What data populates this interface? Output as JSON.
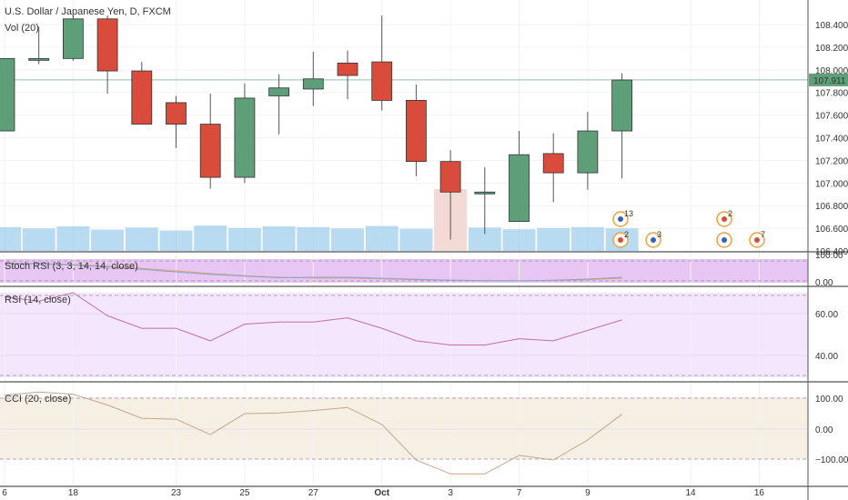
{
  "header": {
    "symbol_title": "U.S. Dollar / Japanese Yen, D, FXCM",
    "volume_label": "Vol (20)"
  },
  "colors": {
    "up": "#5e9e78",
    "down": "#d94b3a",
    "volume": "#7fbde6",
    "stoch_bg": "#e7c6f4",
    "rsi_bg": "#f3e6fd",
    "rsi_line": "#c070a8",
    "cci_bg": "#f5efe4",
    "cci_line": "#c8a68a",
    "price_line": "#8fc3a5",
    "price_badge": "#5e9e78"
  },
  "price_axis": {
    "ticks": [
      "108.400",
      "108.200",
      "108.000",
      "107.800",
      "107.600",
      "107.400",
      "107.200",
      "107.000",
      "106.800",
      "106.600",
      "106.400"
    ],
    "last_price": "107.911"
  },
  "time_axis": {
    "ticks": [
      "6",
      "18",
      "23",
      "25",
      "27",
      "Oct",
      "3",
      "7",
      "9",
      "14",
      "16"
    ]
  },
  "indicators": {
    "stoch": {
      "label": "Stoch RSI (3, 3, 14, 14, close)",
      "ticks": [
        "100.00",
        "0.00"
      ]
    },
    "rsi": {
      "label": "RSI (14, close)",
      "ticks": [
        "60.00",
        "40.00"
      ]
    },
    "cci": {
      "label": "CCI (20, close)",
      "ticks": [
        "100.00",
        "0.00",
        "−100.00"
      ]
    }
  },
  "events": [
    "13",
    "2",
    "3",
    "2",
    "7"
  ],
  "chart_data": {
    "type": "candlestick",
    "title": "U.S. Dollar / Japanese Yen, D, FXCM",
    "candles": [
      {
        "open": 107.46,
        "high": 108.1,
        "low": 107.46,
        "close": 108.1
      },
      {
        "open": 108.1,
        "high": 108.38,
        "low": 108.05,
        "close": 108.1
      },
      {
        "open": 108.1,
        "high": 108.48,
        "low": 108.08,
        "close": 108.45
      },
      {
        "open": 108.45,
        "high": 108.48,
        "low": 107.79,
        "close": 107.99
      },
      {
        "open": 107.99,
        "high": 108.07,
        "low": 107.52,
        "close": 107.52
      },
      {
        "open": 107.71,
        "high": 107.77,
        "low": 107.31,
        "close": 107.52
      },
      {
        "open": 107.52,
        "high": 107.79,
        "low": 106.95,
        "close": 107.05
      },
      {
        "open": 107.05,
        "high": 107.88,
        "low": 107.0,
        "close": 107.75
      },
      {
        "open": 107.77,
        "high": 107.96,
        "low": 107.43,
        "close": 107.84
      },
      {
        "open": 107.83,
        "high": 108.16,
        "low": 107.68,
        "close": 107.92
      },
      {
        "open": 108.06,
        "high": 108.17,
        "low": 107.74,
        "close": 107.95
      },
      {
        "open": 108.07,
        "high": 108.48,
        "low": 107.64,
        "close": 107.73
      },
      {
        "open": 107.73,
        "high": 107.87,
        "low": 107.06,
        "close": 107.19
      },
      {
        "open": 107.19,
        "high": 107.29,
        "low": 106.5,
        "close": 106.92
      },
      {
        "open": 106.92,
        "high": 107.14,
        "low": 106.55,
        "close": 106.92
      },
      {
        "open": 106.66,
        "high": 107.46,
        "low": 106.66,
        "close": 107.25
      },
      {
        "open": 107.26,
        "high": 107.44,
        "low": 106.83,
        "close": 107.09
      },
      {
        "open": 107.09,
        "high": 107.63,
        "low": 106.94,
        "close": 107.46
      },
      {
        "open": 107.46,
        "high": 107.97,
        "low": 107.04,
        "close": 107.91
      }
    ],
    "volume": [
      0.58,
      0.55,
      0.6,
      0.52,
      0.57,
      0.5,
      0.62,
      0.56,
      0.6,
      0.58,
      0.55,
      0.61,
      0.54,
      2.0,
      0.57,
      0.53,
      0.56,
      0.58,
      0.55
    ],
    "stoch_rsi": {
      "k": [
        87,
        85,
        79,
        70,
        58,
        45,
        33,
        24,
        16,
        18,
        18,
        13,
        8,
        3,
        1,
        0,
        3,
        9,
        18
      ],
      "d": [
        90,
        87,
        82,
        74,
        63,
        50,
        37,
        26,
        18,
        14,
        14,
        10,
        6,
        3,
        2,
        1,
        2,
        6,
        13
      ]
    },
    "rsi": [
      68,
      66,
      70,
      59,
      53,
      53,
      47,
      55,
      56,
      56,
      58,
      53,
      47,
      45,
      45,
      48,
      47,
      52,
      57
    ],
    "cci": [
      110,
      120,
      113,
      78,
      35,
      32,
      -18,
      50,
      52,
      60,
      70,
      15,
      -100,
      -145,
      -145,
      -85,
      -100,
      -35,
      48
    ],
    "price_range": [
      106.4,
      108.5
    ],
    "rsi_range": [
      27,
      77
    ],
    "cci_range": [
      -145,
      118
    ]
  }
}
